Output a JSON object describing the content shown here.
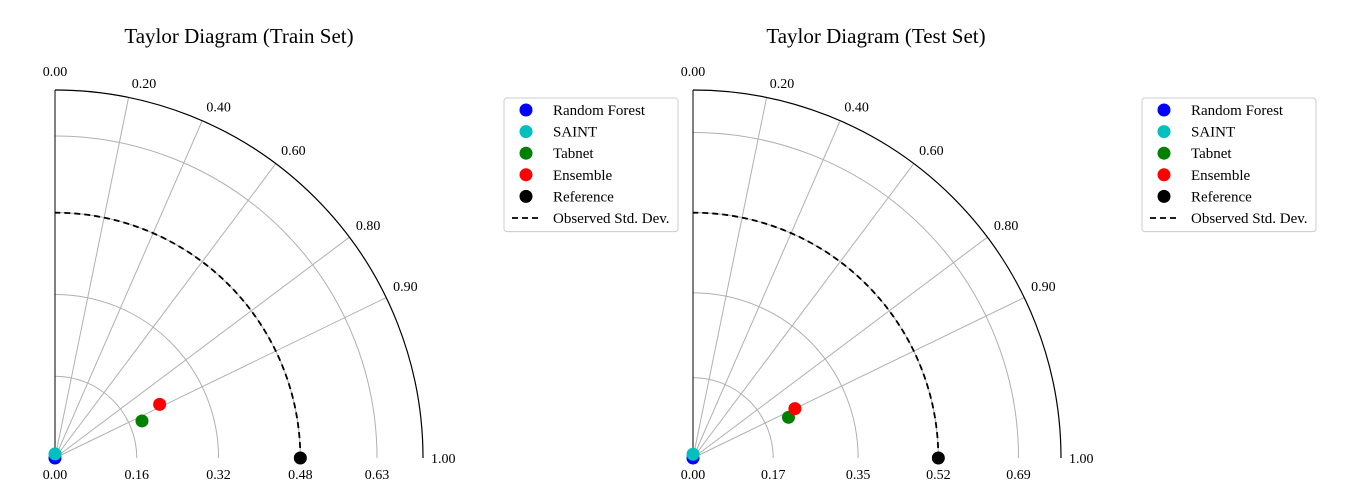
{
  "chart_data": [
    {
      "type": "scatter",
      "subtype": "taylor-diagram",
      "title": "Taylor Diagram (Train Set)",
      "correlation_ticks": [
        "0.00",
        "0.20",
        "0.40",
        "0.60",
        "0.80",
        "0.90",
        "1.00"
      ],
      "correlation_values": [
        0.0,
        0.2,
        0.4,
        0.6,
        0.8,
        0.9,
        1.0
      ],
      "std_ticks": [
        "0.00",
        "0.16",
        "0.32",
        "0.48",
        "0.63"
      ],
      "std_values": [
        0.0,
        0.16,
        0.32,
        0.48,
        0.63
      ],
      "std_max": 0.72,
      "reference_std": 0.48,
      "grid": true,
      "legend_position": "right",
      "points": [
        {
          "name": "Random Forest",
          "color": "#0000ff",
          "std": 0.0,
          "corr": 0.0
        },
        {
          "name": "SAINT",
          "color": "#00bfbf",
          "std": 0.008,
          "corr": 0.0
        },
        {
          "name": "Tabnet",
          "color": "#008000",
          "std": 0.185,
          "corr": 0.92
        },
        {
          "name": "Ensemble",
          "color": "#ff0000",
          "std": 0.23,
          "corr": 0.89
        },
        {
          "name": "Reference",
          "color": "#000000",
          "std": 0.48,
          "corr": 1.0
        }
      ],
      "observed_line": {
        "name": "Observed Std. Dev.",
        "std": 0.48,
        "color": "#000000"
      }
    },
    {
      "type": "scatter",
      "subtype": "taylor-diagram",
      "title": "Taylor Diagram (Test Set)",
      "correlation_ticks": [
        "0.00",
        "0.20",
        "0.40",
        "0.60",
        "0.80",
        "0.90",
        "1.00"
      ],
      "correlation_values": [
        0.0,
        0.2,
        0.4,
        0.6,
        0.8,
        0.9,
        1.0
      ],
      "std_ticks": [
        "0.00",
        "0.17",
        "0.35",
        "0.52",
        "0.69"
      ],
      "std_values": [
        0.0,
        0.17,
        0.35,
        0.52,
        0.69
      ],
      "std_max": 0.78,
      "reference_std": 0.52,
      "grid": true,
      "legend_position": "right",
      "points": [
        {
          "name": "Random Forest",
          "color": "#0000ff",
          "std": 0.0,
          "corr": 0.0
        },
        {
          "name": "SAINT",
          "color": "#00bfbf",
          "std": 0.008,
          "corr": 0.0
        },
        {
          "name": "Tabnet",
          "color": "#008000",
          "std": 0.22,
          "corr": 0.92
        },
        {
          "name": "Ensemble",
          "color": "#ff0000",
          "std": 0.24,
          "corr": 0.9
        },
        {
          "name": "Reference",
          "color": "#000000",
          "std": 0.52,
          "corr": 1.0
        }
      ],
      "observed_line": {
        "name": "Observed Std. Dev.",
        "std": 0.52,
        "color": "#000000"
      }
    }
  ]
}
